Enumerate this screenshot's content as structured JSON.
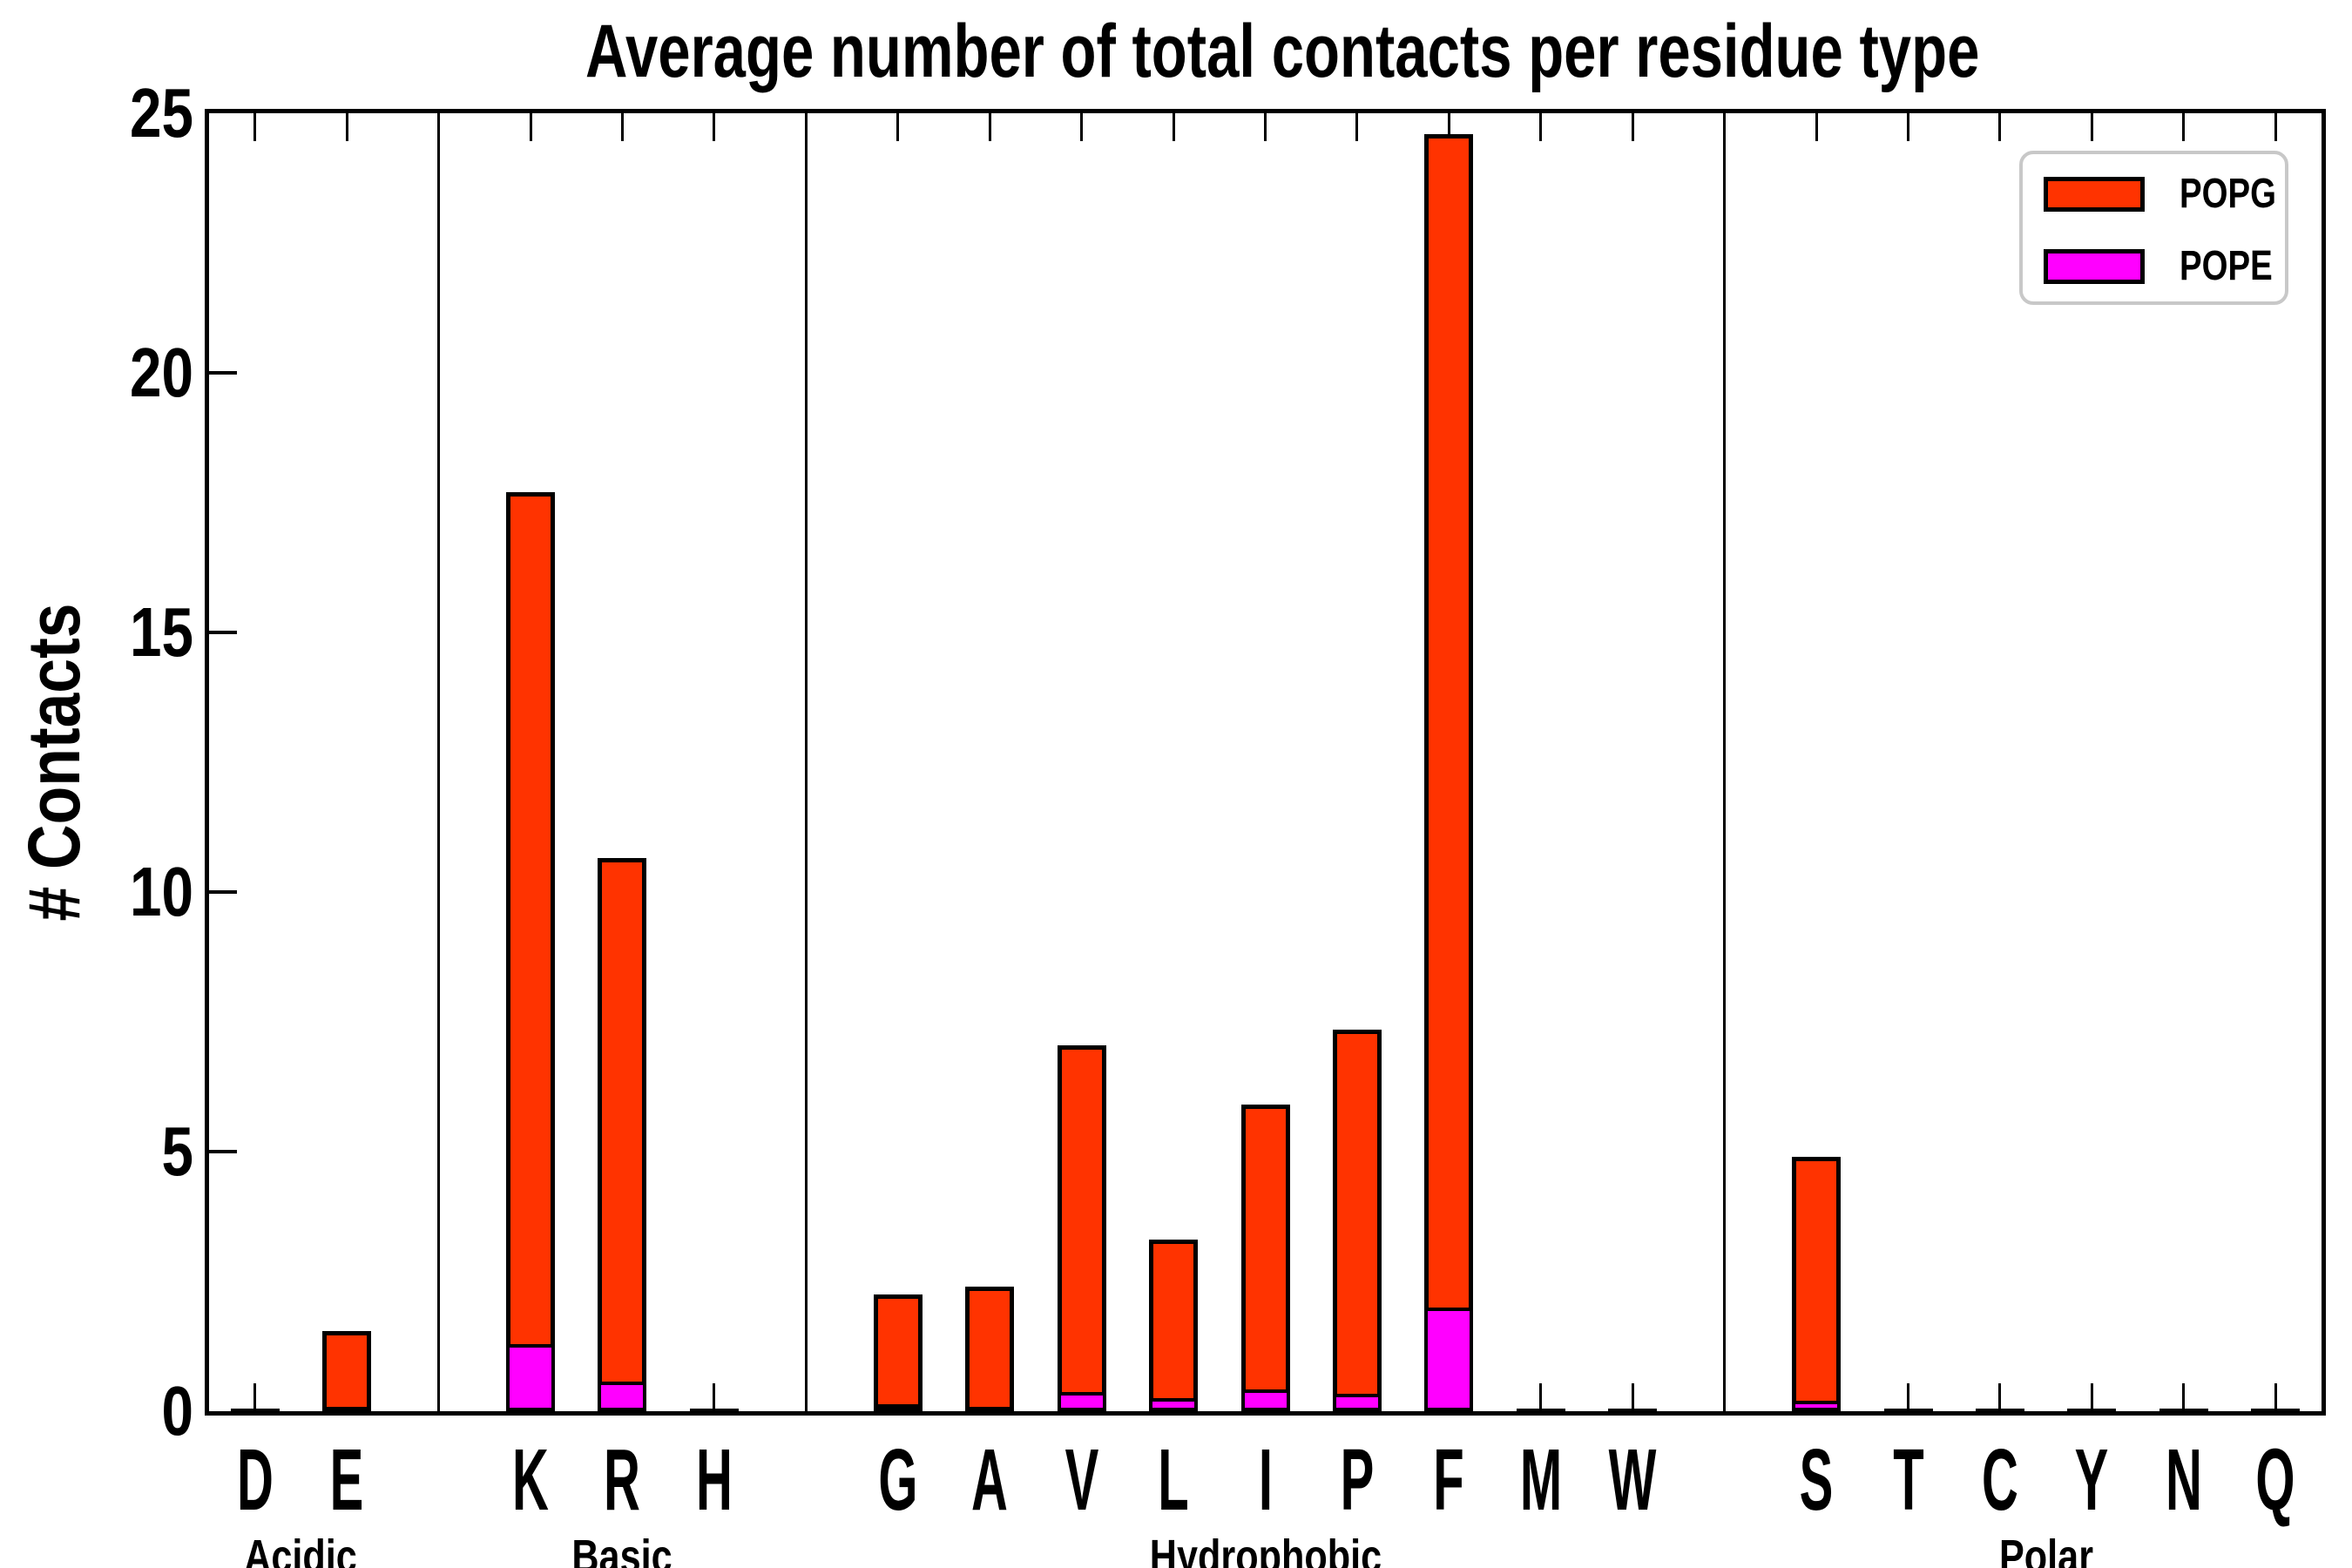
{
  "title": "Average number of total contacts per residue type",
  "ylabel": "# Contacts",
  "legend": [
    {
      "label": "POPG",
      "color": "#ff3300"
    },
    {
      "label": "POPE",
      "color": "#ff00ff"
    }
  ],
  "colors": {
    "popg": "#ff3300",
    "pope": "#ff00ff",
    "axis": "#000000",
    "legend_border": "#c8c8c8",
    "background": "#ffffff"
  },
  "chart_data": {
    "type": "bar",
    "title": "Average number of total contacts per residue type",
    "xlabel": "",
    "ylabel": "# Contacts",
    "ylim": [
      0,
      25
    ],
    "yticks": [
      0,
      5,
      10,
      15,
      20,
      25
    ],
    "grid": false,
    "legend_position": "upper right",
    "series_note": "POPE bars are drawn from zero in front of POPG bars; bar top of orange = POPG value",
    "groups": [
      {
        "label": "Acidic",
        "bars": [
          {
            "residue": "D",
            "popg": 0.05,
            "pope": 0.03
          },
          {
            "residue": "E",
            "popg": 1.55,
            "pope": 0.05
          }
        ]
      },
      {
        "label": "Basic",
        "bars": [
          {
            "residue": "K",
            "popg": 17.7,
            "pope": 1.3
          },
          {
            "residue": "R",
            "popg": 10.65,
            "pope": 0.57
          },
          {
            "residue": "H",
            "popg": 0.04,
            "pope": 0.02
          }
        ]
      },
      {
        "label": "Hydrophobic",
        "bars": [
          {
            "residue": "G",
            "popg": 2.25,
            "pope": 0.14
          },
          {
            "residue": "A",
            "popg": 2.4,
            "pope": 0.03
          },
          {
            "residue": "V",
            "popg": 7.05,
            "pope": 0.37
          },
          {
            "residue": "L",
            "popg": 3.3,
            "pope": 0.25
          },
          {
            "residue": "I",
            "popg": 5.9,
            "pope": 0.42
          },
          {
            "residue": "P",
            "popg": 7.35,
            "pope": 0.33
          },
          {
            "residue": "F",
            "popg": 24.6,
            "pope": 2.0
          },
          {
            "residue": "M",
            "popg": 0.04,
            "pope": 0.02
          },
          {
            "residue": "W",
            "popg": 0.04,
            "pope": 0.02
          }
        ]
      },
      {
        "label": "Polar",
        "bars": [
          {
            "residue": "S",
            "popg": 4.9,
            "pope": 0.2
          },
          {
            "residue": "T",
            "popg": 0.04,
            "pope": 0.02
          },
          {
            "residue": "C",
            "popg": 0.04,
            "pope": 0.02
          },
          {
            "residue": "Y",
            "popg": 0.04,
            "pope": 0.02
          },
          {
            "residue": "N",
            "popg": 0.04,
            "pope": 0.02
          },
          {
            "residue": "Q",
            "popg": 0.04,
            "pope": 0.02
          }
        ]
      }
    ]
  }
}
